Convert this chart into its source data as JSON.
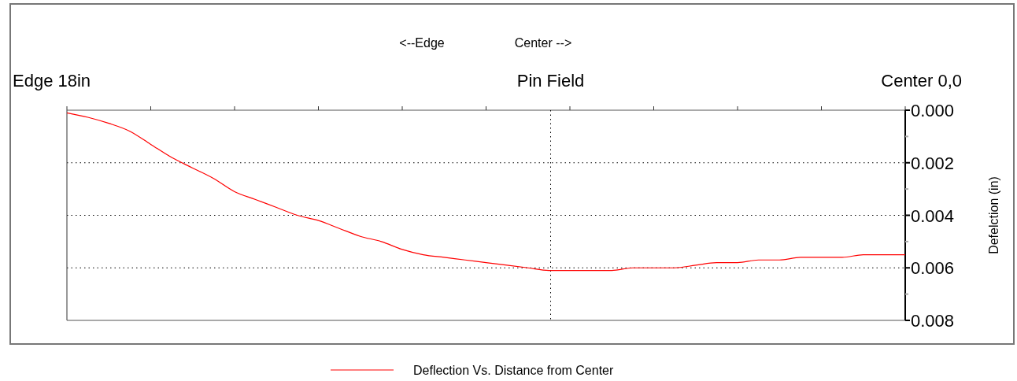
{
  "chart_data": {
    "type": "line",
    "annotations": [
      "<--Edge",
      "Center -->",
      "Edge 18in",
      "Center 0,0",
      "Pin Field"
    ],
    "ylabel": "Defelction (in)",
    "categories": [
      null,
      null,
      null,
      null,
      null,
      null,
      null,
      null,
      null,
      null,
      null,
      null,
      null,
      null,
      null,
      null,
      null,
      null,
      null,
      null,
      null,
      null,
      null,
      null,
      null,
      null,
      null,
      null,
      null,
      null,
      null,
      null,
      null,
      null,
      null,
      null,
      null,
      null,
      null,
      null,
      null
    ],
    "series": [
      {
        "name": "Deflection Vs. Distance from Center",
        "color": "#ff0000",
        "values": [
          0.0001,
          0.00027,
          0.0005,
          0.0008,
          0.0013,
          0.0018,
          0.0022,
          0.0026,
          0.0031,
          0.0034,
          0.0037,
          0.004,
          0.0042,
          0.0045,
          0.0048,
          0.005,
          0.0053,
          0.0055,
          0.0056,
          0.0057,
          0.0058,
          0.0059,
          0.006,
          0.0061,
          0.0061,
          0.0061,
          0.0061,
          0.006,
          0.006,
          0.006,
          0.0059,
          0.0058,
          0.0058,
          0.0057,
          0.0057,
          0.0056,
          0.0056,
          0.0056,
          0.0055,
          0.0055,
          0.0055
        ]
      }
    ],
    "ylim": [
      0.008,
      0
    ],
    "yticks": [
      {
        "value": 0,
        "label": "0.000"
      },
      {
        "value": 0.001,
        "label": null
      },
      {
        "value": 0.002,
        "label": "0.002"
      },
      {
        "value": 0.003,
        "label": null
      },
      {
        "value": 0.004,
        "label": "0.004"
      },
      {
        "value": 0.005,
        "label": null
      },
      {
        "value": 0.006,
        "label": "0.006"
      },
      {
        "value": 0.007,
        "label": null
      },
      {
        "value": 0.008,
        "label": "0.008"
      }
    ],
    "grid": "y",
    "legend": "bottom",
    "line_style": "solid",
    "marker": "none"
  }
}
